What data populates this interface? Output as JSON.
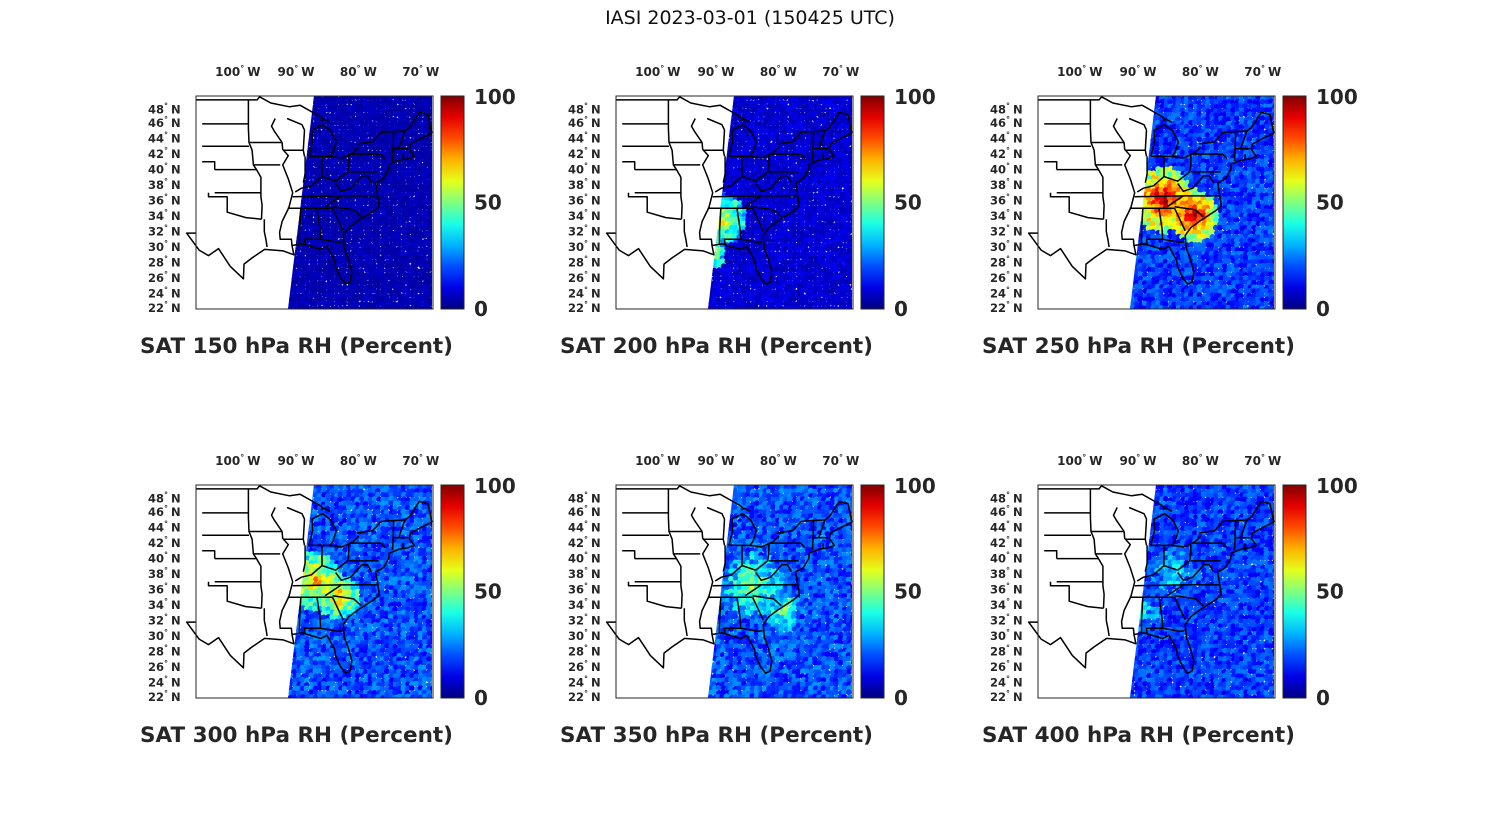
{
  "figure": {
    "title": "IASI 2023-03-01 (150425 UTC)"
  },
  "map": {
    "lon_ticks": [
      {
        "deg": "100",
        "hemi": "W"
      },
      {
        "deg": "90",
        "hemi": "W"
      },
      {
        "deg": "80",
        "hemi": "W"
      },
      {
        "deg": "70",
        "hemi": "W"
      }
    ],
    "lat_ticks": [
      {
        "deg": "48",
        "hemi": "N"
      },
      {
        "deg": "46",
        "hemi": "N"
      },
      {
        "deg": "44",
        "hemi": "N"
      },
      {
        "deg": "42",
        "hemi": "N"
      },
      {
        "deg": "40",
        "hemi": "N"
      },
      {
        "deg": "38",
        "hemi": "N"
      },
      {
        "deg": "36",
        "hemi": "N"
      },
      {
        "deg": "34",
        "hemi": "N"
      },
      {
        "deg": "32",
        "hemi": "N"
      },
      {
        "deg": "30",
        "hemi": "N"
      },
      {
        "deg": "28",
        "hemi": "N"
      },
      {
        "deg": "26",
        "hemi": "N"
      },
      {
        "deg": "24",
        "hemi": "N"
      },
      {
        "deg": "22",
        "hemi": "N"
      }
    ],
    "degree_symbol": "°"
  },
  "colorbar": {
    "colormap": "jet",
    "ticks": [
      "100",
      "50",
      "0"
    ],
    "range": [
      0,
      100
    ]
  },
  "chart_data": [
    {
      "type": "heatmap",
      "title": "SAT 150 hPa RH (Percent)",
      "level_hPa": 150,
      "units": "Percent",
      "typical_value": 5,
      "moist_area_value": 5
    },
    {
      "type": "heatmap",
      "title": "SAT 200 hPa RH (Percent)",
      "level_hPa": 200,
      "units": "Percent",
      "typical_value": 8,
      "moist_area_value": 60
    },
    {
      "type": "heatmap",
      "title": "SAT 250 hPa RH (Percent)",
      "level_hPa": 250,
      "units": "Percent",
      "typical_value": 18,
      "moist_area_value": 95
    },
    {
      "type": "heatmap",
      "title": "SAT 300 hPa RH (Percent)",
      "level_hPa": 300,
      "units": "Percent",
      "typical_value": 20,
      "moist_area_value": 70
    },
    {
      "type": "heatmap",
      "title": "SAT 350 hPa RH (Percent)",
      "level_hPa": 350,
      "units": "Percent",
      "typical_value": 20,
      "moist_area_value": 50
    },
    {
      "type": "heatmap",
      "title": "SAT 400 hPa RH (Percent)",
      "level_hPa": 400,
      "units": "Percent",
      "typical_value": 18,
      "moist_area_value": 35
    }
  ]
}
